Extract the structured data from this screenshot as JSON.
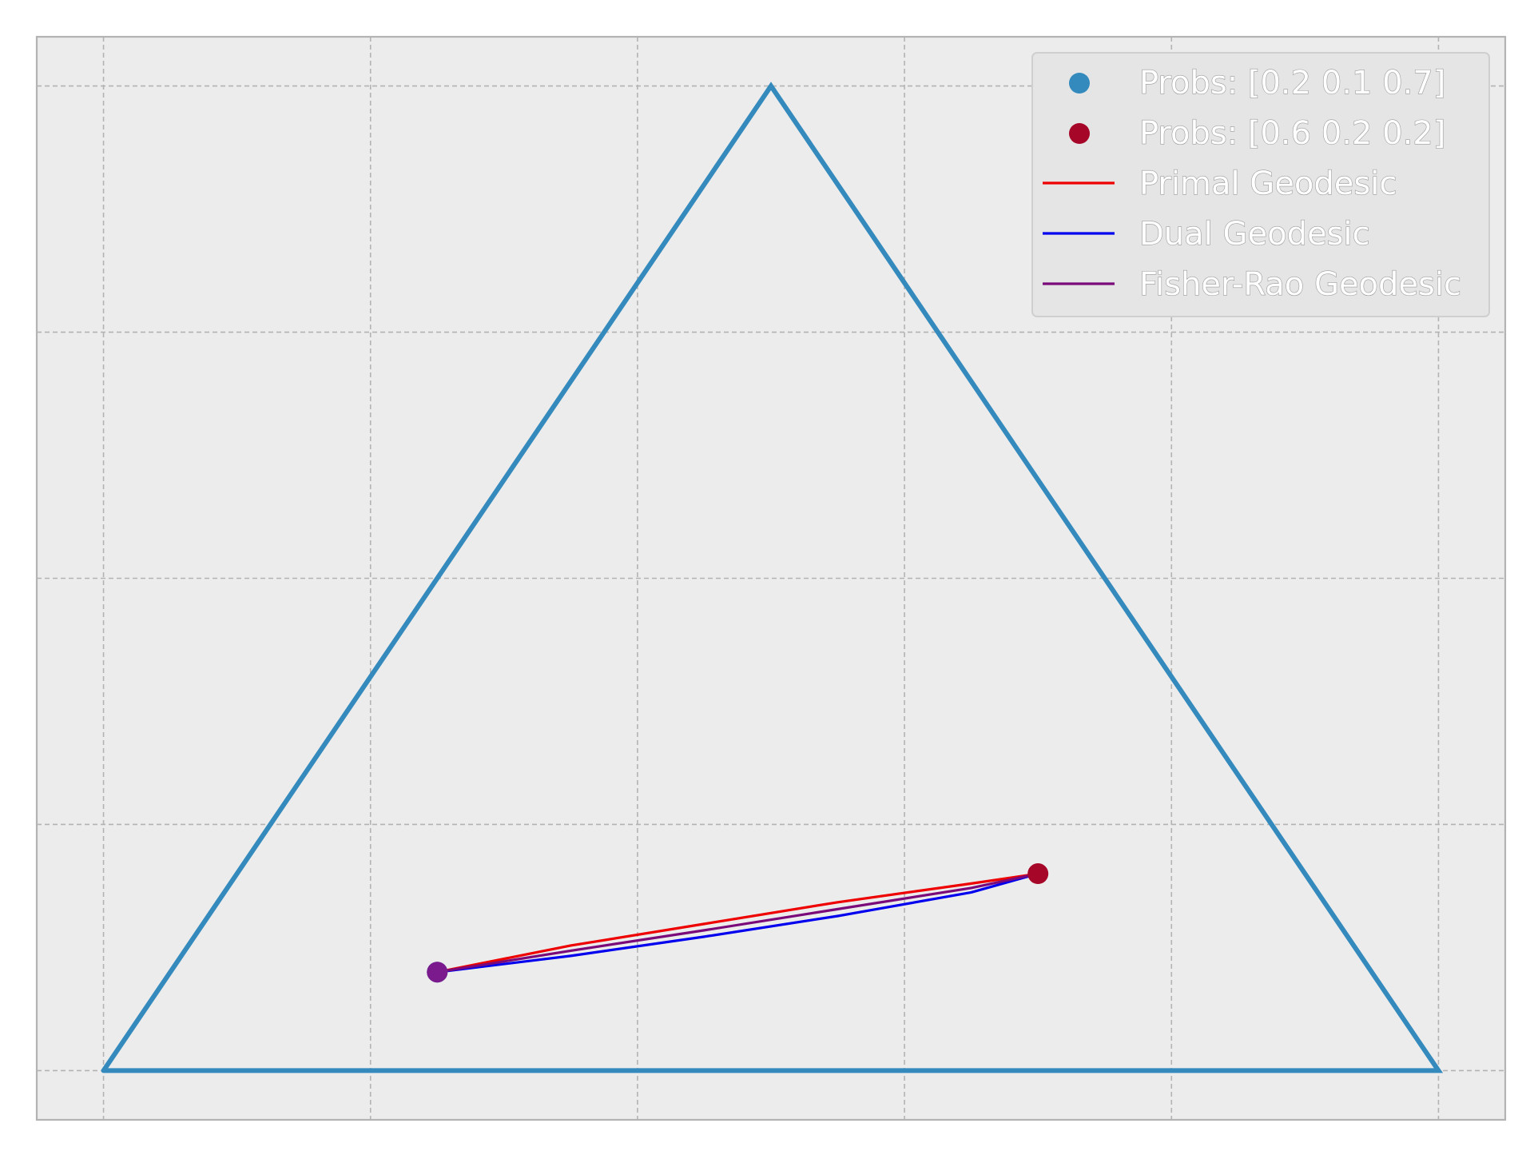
{
  "chart_data": {
    "type": "line",
    "title": "",
    "xlabel": "",
    "ylabel": "",
    "xlim": [
      -0.05,
      1.05
    ],
    "ylim": [
      -0.04,
      0.84
    ],
    "grid": true,
    "legend_position": "top-right",
    "colors": {
      "background": "#ececec",
      "grid": "#b3b3b3",
      "frame": "#b3b3b3",
      "simplex": "#348abd",
      "point_a": "#348abd",
      "point_b": "#a60628",
      "endpoint_overlay": "#7a1a8c",
      "primal": "#ee0000",
      "dual": "#0000ee",
      "fisher_rao": "#7a0a7a"
    },
    "simplex": {
      "name": "simplex",
      "x": [
        0,
        0.5,
        1,
        0
      ],
      "y": [
        0,
        0.8,
        0,
        0
      ]
    },
    "points": [
      {
        "name": "Probs: [0.2 0.1 0.7]",
        "probs": [
          0.2,
          0.1,
          0.7
        ],
        "x": 0.25,
        "y": 0.08
      },
      {
        "name": "Probs: [0.6 0.2 0.2]",
        "probs": [
          0.6,
          0.2,
          0.2
        ],
        "x": 0.7,
        "y": 0.16
      }
    ],
    "series": [
      {
        "name": "Primal Geodesic",
        "x": [
          0.25,
          0.35,
          0.45,
          0.55,
          0.65,
          0.7
        ],
        "y": [
          0.08,
          0.1016,
          0.1192,
          0.1368,
          0.152,
          0.16
        ]
      },
      {
        "name": "Dual Geodesic",
        "x": [
          0.25,
          0.35,
          0.45,
          0.55,
          0.65,
          0.7
        ],
        "y": [
          0.08,
          0.0932,
          0.1088,
          0.1256,
          0.1448,
          0.16
        ]
      },
      {
        "name": "Fisher-Rao Geodesic",
        "x": [
          0.25,
          0.35,
          0.45,
          0.55,
          0.65,
          0.7
        ],
        "y": [
          0.08,
          0.0974,
          0.114,
          0.1312,
          0.1484,
          0.16
        ]
      }
    ],
    "legend": [
      {
        "label": "Probs: [0.2 0.1 0.7]",
        "kind": "marker",
        "color": "#348abd"
      },
      {
        "label": "Probs: [0.6 0.2 0.2]",
        "kind": "marker",
        "color": "#a60628"
      },
      {
        "label": "Primal Geodesic",
        "kind": "line",
        "color": "#ee0000"
      },
      {
        "label": "Dual Geodesic",
        "kind": "line",
        "color": "#0000ee"
      },
      {
        "label": "Fisher-Rao Geodesic",
        "kind": "line",
        "color": "#7a0a7a"
      }
    ]
  }
}
